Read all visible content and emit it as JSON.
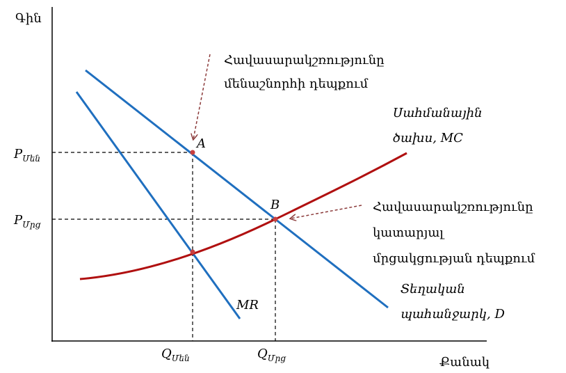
{
  "axes": {
    "y_label": "Գին",
    "x_label": "Քանակ"
  },
  "price_labels": [
    {
      "main": "P",
      "sub": "Մեն"
    },
    {
      "main": "P",
      "sub": "Մրց"
    }
  ],
  "quantity_labels": [
    {
      "main": "Q",
      "sub": "Մեն"
    },
    {
      "main": "Q",
      "sub": "Մրց"
    }
  ],
  "points": [
    {
      "label": "A"
    },
    {
      "label": "B"
    }
  ],
  "curves": {
    "mr": "MR",
    "mc": [
      "Սահմանային",
      "ծախս, MC"
    ],
    "demand": [
      "Տեղական",
      "պահանջարկ, D"
    ]
  },
  "annotations": [
    {
      "lines": [
        "Հավասարակշռությունը",
        "մենաշնորհի դեպքում"
      ]
    },
    {
      "lines": [
        "Հավասարակշռությունը",
        "կատարյալ",
        "մրցակցության դեպքում"
      ]
    }
  ]
}
